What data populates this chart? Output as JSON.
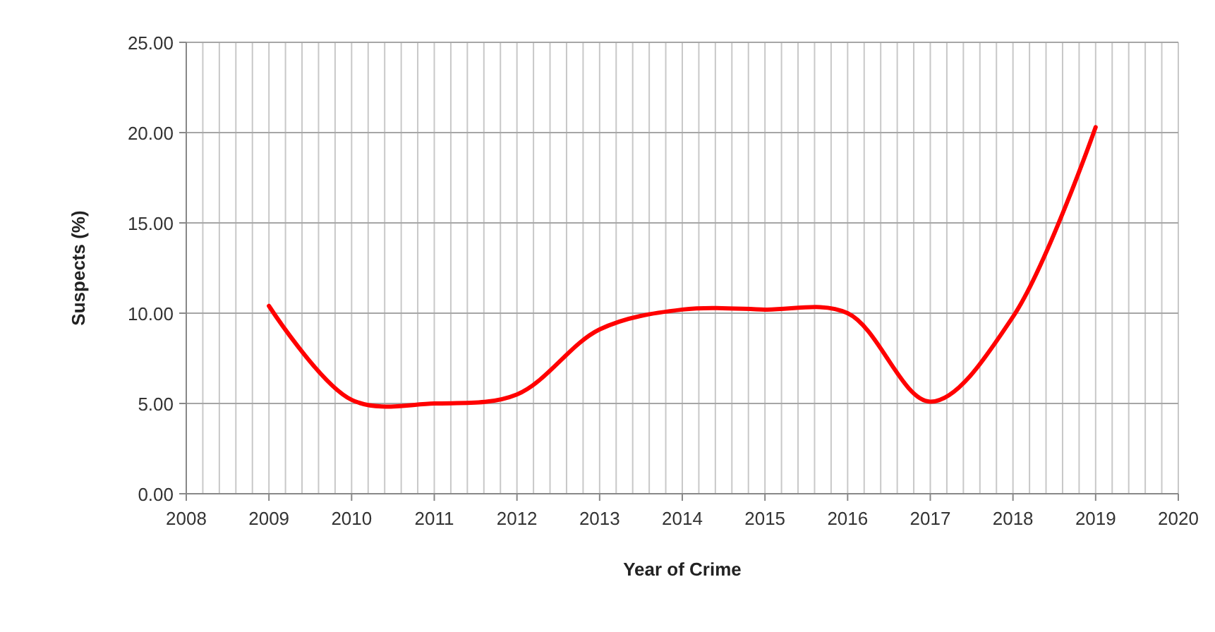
{
  "chart_data": {
    "type": "line",
    "xlabel": "Year of Crime",
    "ylabel": "Suspects (%)",
    "x": [
      2009,
      2010,
      2011,
      2012,
      2013,
      2014,
      2015,
      2016,
      2017,
      2018,
      2019
    ],
    "series": [
      {
        "color": "#ff0000",
        "values": [
          10.4,
          5.2,
          5.0,
          5.5,
          9.1,
          10.2,
          10.2,
          10.0,
          5.1,
          9.8,
          20.3
        ]
      }
    ],
    "xlim": [
      2008,
      2020
    ],
    "xticks": [
      2008,
      {
        "value": 2008.2,
        "label": null
      },
      {
        "value": 2008.4,
        "label": null
      },
      {
        "value": 2008.6,
        "label": null
      },
      {
        "value": 2008.8,
        "label": null
      },
      2009,
      {
        "value": 2009.2,
        "label": null
      },
      {
        "value": 2009.4,
        "label": null
      },
      {
        "value": 2009.6,
        "label": null
      },
      {
        "value": 2009.8,
        "label": null
      },
      2010,
      {
        "value": 2010.2,
        "label": null
      },
      {
        "value": 2010.4,
        "label": null
      },
      {
        "value": 2010.6,
        "label": null
      },
      {
        "value": 2010.8,
        "label": null
      },
      2011,
      {
        "value": 2011.2,
        "label": null
      },
      {
        "value": 2011.4,
        "label": null
      },
      {
        "value": 2011.6,
        "label": null
      },
      {
        "value": 2011.8,
        "label": null
      },
      2012,
      {
        "value": 2012.2,
        "label": null
      },
      {
        "value": 2012.4,
        "label": null
      },
      {
        "value": 2012.6,
        "label": null
      },
      {
        "value": 2012.8,
        "label": null
      },
      2013,
      {
        "value": 2013.2,
        "label": null
      },
      {
        "value": 2013.4,
        "label": null
      },
      {
        "value": 2013.6,
        "label": null
      },
      {
        "value": 2013.8,
        "label": null
      },
      2014,
      {
        "value": 2014.2,
        "label": null
      },
      {
        "value": 2014.4,
        "label": null
      },
      {
        "value": 2014.6,
        "label": null
      },
      {
        "value": 2014.8,
        "label": null
      },
      2015,
      {
        "value": 2015.2,
        "label": null
      },
      {
        "value": 2015.4,
        "label": null
      },
      {
        "value": 2015.6,
        "label": null
      },
      {
        "value": 2015.8,
        "label": null
      },
      2016,
      {
        "value": 2016.2,
        "label": null
      },
      {
        "value": 2016.4,
        "label": null
      },
      {
        "value": 2016.6,
        "label": null
      },
      {
        "value": 2016.8,
        "label": null
      },
      2017,
      {
        "value": 2017.2,
        "label": null
      },
      {
        "value": 2017.4,
        "label": null
      },
      {
        "value": 2017.6,
        "label": null
      },
      {
        "value": 2017.8,
        "label": null
      },
      2018,
      {
        "value": 2018.2,
        "label": null
      },
      {
        "value": 2018.4,
        "label": null
      },
      {
        "value": 2018.6,
        "label": null
      },
      {
        "value": 2018.8,
        "label": null
      },
      2019,
      {
        "value": 2019.2,
        "label": null
      },
      {
        "value": 2019.4,
        "label": null
      },
      {
        "value": 2019.6,
        "label": null
      },
      {
        "value": 2019.8,
        "label": null
      },
      2020
    ],
    "ylim": [
      0,
      25
    ],
    "yticks": [
      {
        "value": 0,
        "label": "0.00"
      },
      {
        "value": 5,
        "label": "5.00"
      },
      {
        "value": 10,
        "label": "10.00"
      },
      {
        "value": 15,
        "label": "15.00"
      },
      {
        "value": 20,
        "label": "20.00"
      },
      {
        "value": 25,
        "label": "25.00"
      }
    ],
    "grid": true,
    "marker": "none",
    "line_style": "solid"
  }
}
